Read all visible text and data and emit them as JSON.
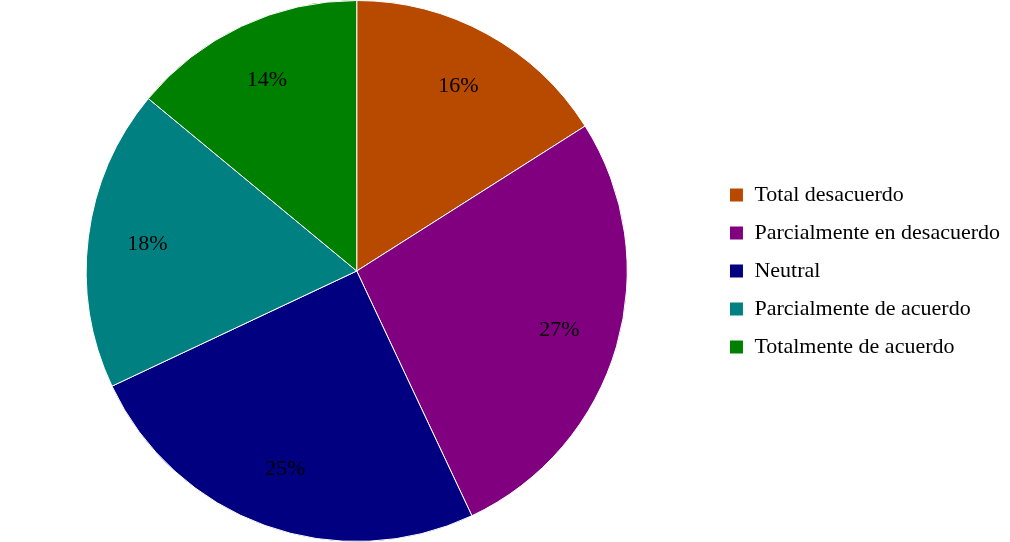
{
  "chart_data": {
    "type": "pie",
    "categories": [
      "Total desacuerdo",
      "Parcialmente en desacuerdo",
      "Neutral",
      "Parcialmente de acuerdo",
      "Totalmente de acuerdo"
    ],
    "values": [
      16,
      27,
      25,
      18,
      14
    ],
    "colors": [
      "#b84a00",
      "#800080",
      "#000080",
      "#008080",
      "#008000"
    ],
    "value_labels": [
      "16%",
      "27%",
      "25%",
      "18%",
      "14%"
    ],
    "legend": "right"
  }
}
